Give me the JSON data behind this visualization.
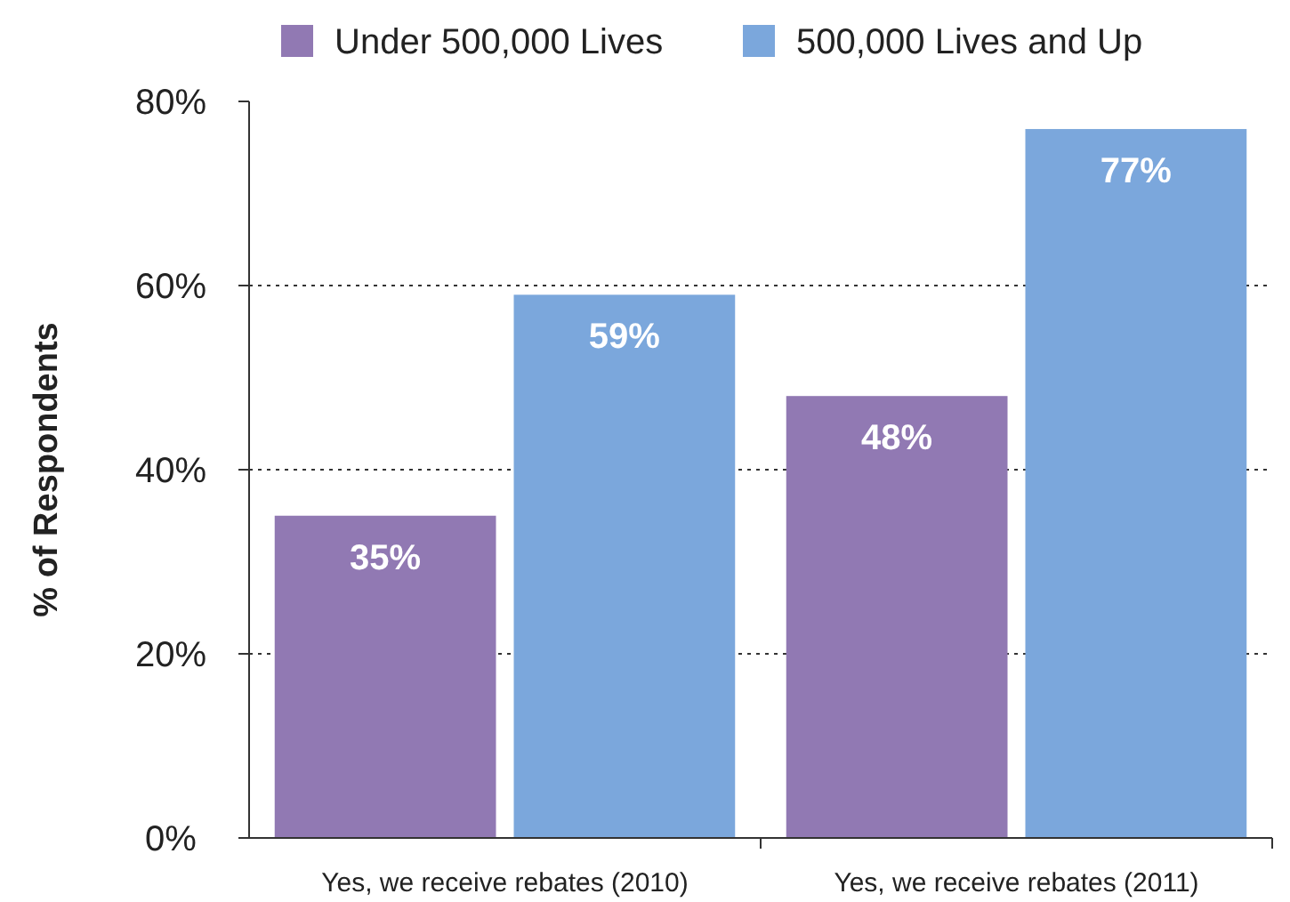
{
  "chart_data": {
    "type": "bar",
    "ylabel": "% of Respondents",
    "categories": [
      "Yes, we receive rebates (2010)",
      "Yes, we receive rebates (2011)"
    ],
    "series": [
      {
        "name": "Under 500,000 Lives",
        "color": "#9179b3",
        "values": [
          35,
          48
        ],
        "value_labels": [
          "35%",
          "48%"
        ]
      },
      {
        "name": "500,000 Lives and Up",
        "color": "#7ba7dc",
        "values": [
          59,
          77
        ],
        "value_labels": [
          "59%",
          "77%"
        ]
      }
    ],
    "ylim": [
      0,
      80
    ],
    "yticks": [
      {
        "value": 0,
        "label": "0%"
      },
      {
        "value": 20,
        "label": "20%"
      },
      {
        "value": 40,
        "label": "40%"
      },
      {
        "value": 60,
        "label": "60%"
      },
      {
        "value": 80,
        "label": "80%"
      }
    ],
    "grid": "y",
    "legend": "top"
  }
}
